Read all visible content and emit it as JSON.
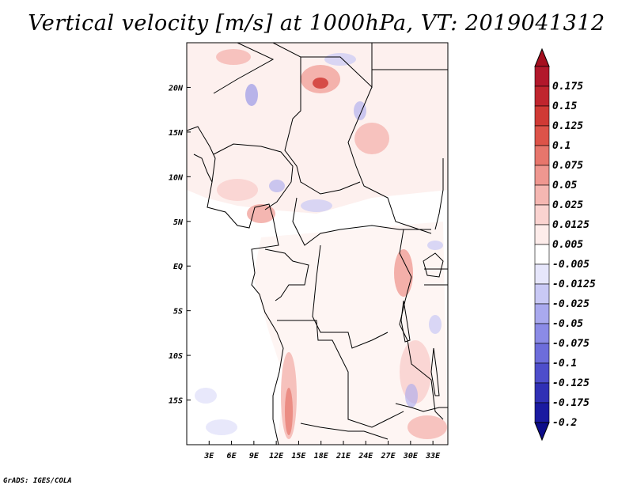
{
  "title": "Vertical velocity [m/s] at 1000hPa, VT: 2019041312",
  "credit": "GrADS: IGES/COLA",
  "map": {
    "lon_range": [
      0,
      35
    ],
    "lat_range": [
      -20,
      25
    ],
    "lon_ticks": [
      {
        "value": 3,
        "label": "3E"
      },
      {
        "value": 6,
        "label": "6E"
      },
      {
        "value": 9,
        "label": "9E"
      },
      {
        "value": 12,
        "label": "12E"
      },
      {
        "value": 15,
        "label": "15E"
      },
      {
        "value": 18,
        "label": "18E"
      },
      {
        "value": 21,
        "label": "21E"
      },
      {
        "value": 24,
        "label": "24E"
      },
      {
        "value": 27,
        "label": "27E"
      },
      {
        "value": 30,
        "label": "30E"
      },
      {
        "value": 33,
        "label": "33E"
      }
    ],
    "lat_ticks": [
      {
        "value": 20,
        "label": "20N"
      },
      {
        "value": 15,
        "label": "15N"
      },
      {
        "value": 10,
        "label": "10N"
      },
      {
        "value": 5,
        "label": "5N"
      },
      {
        "value": 0,
        "label": "EQ"
      },
      {
        "value": -5,
        "label": "5S"
      },
      {
        "value": -10,
        "label": "10S"
      },
      {
        "value": -15,
        "label": "15S"
      }
    ]
  },
  "colorbar": {
    "levels": [
      {
        "label": "0.175",
        "color": "#b2182b"
      },
      {
        "label": "0.15",
        "color": "#c0252e"
      },
      {
        "label": "0.125",
        "color": "#d03a35"
      },
      {
        "label": "0.1",
        "color": "#dd5349"
      },
      {
        "label": "0.075",
        "color": "#e7766c"
      },
      {
        "label": "0.05",
        "color": "#ef9790"
      },
      {
        "label": "0.025",
        "color": "#f5b7b2"
      },
      {
        "label": "0.0125",
        "color": "#fad3d0"
      },
      {
        "label": "0.005",
        "color": "#fdecea"
      },
      {
        "label": "-0.005",
        "color": "#ffffff"
      },
      {
        "label": "-0.0125",
        "color": "#e6e6fb"
      },
      {
        "label": "-0.025",
        "color": "#c9c9f5"
      },
      {
        "label": "-0.05",
        "color": "#a9a9ee"
      },
      {
        "label": "-0.075",
        "color": "#8b8be6"
      },
      {
        "label": "-0.1",
        "color": "#6d6ddb"
      },
      {
        "label": "-0.125",
        "color": "#4e4ecb"
      },
      {
        "label": "-0.175",
        "color": "#3030b5"
      },
      {
        "label": "-0.2",
        "color": "#1a1aa0"
      }
    ],
    "top_color": "#a50f1f",
    "bottom_color": "#0d0d8a"
  }
}
